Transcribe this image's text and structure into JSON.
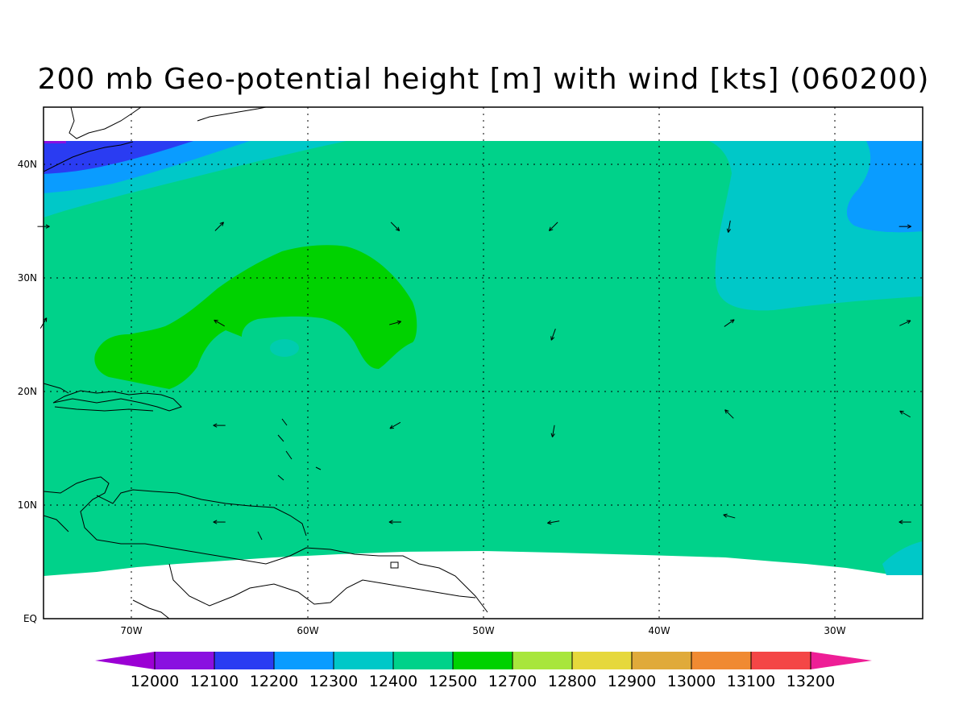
{
  "title": "200 mb Geo-potential height [m] with wind [kts] (060200)",
  "axes": {
    "x_ticks": [
      "70W",
      "60W",
      "50W",
      "40W",
      "30W"
    ],
    "y_ticks": [
      "EQ",
      "10N",
      "20N",
      "30N",
      "40N"
    ],
    "lon_range": [
      -75,
      -25
    ],
    "lat_range": [
      0,
      45
    ]
  },
  "colorbar": {
    "labels": [
      "12000",
      "12100",
      "12200",
      "12300",
      "12400",
      "12500",
      "12700",
      "12800",
      "12900",
      "13000",
      "13100",
      "13200"
    ],
    "colors": [
      "#9b00d4",
      "#8a10e0",
      "#2a3cf2",
      "#0a9cff",
      "#00c8c8",
      "#00d28a",
      "#00d200",
      "#a8e63c",
      "#e6d83c",
      "#e0aa3a",
      "#f08a32",
      "#f44646",
      "#ee1e96"
    ]
  },
  "field_colors": {
    "background": "#00d28a",
    "low_deep": "#8a10e0",
    "low_blue": "#2a3cf2",
    "low_light": "#0a9cff",
    "low_cyan": "#00c8c8",
    "high_green": "#00d200",
    "missing": "#ffffff"
  },
  "wind_vectors": [
    {
      "lon": -75,
      "lat": 34.5,
      "dir": 0
    },
    {
      "lon": -65,
      "lat": 34.5,
      "dir": 45
    },
    {
      "lon": -55,
      "lat": 34.5,
      "dir": -45
    },
    {
      "lon": -46,
      "lat": 34.5,
      "dir": -135
    },
    {
      "lon": -36,
      "lat": 34.5,
      "dir": -100
    },
    {
      "lon": -26,
      "lat": 34.5,
      "dir": 0
    },
    {
      "lon": -75,
      "lat": 26,
      "dir": 60
    },
    {
      "lon": -65,
      "lat": 26,
      "dir": 150
    },
    {
      "lon": -55,
      "lat": 26,
      "dir": 15
    },
    {
      "lon": -46,
      "lat": 25,
      "dir": -110
    },
    {
      "lon": -36,
      "lat": 26,
      "dir": 35
    },
    {
      "lon": -26,
      "lat": 26,
      "dir": 25
    },
    {
      "lon": -65,
      "lat": 17,
      "dir": 180
    },
    {
      "lon": -55,
      "lat": 17,
      "dir": -150
    },
    {
      "lon": -46,
      "lat": 16.5,
      "dir": -100
    },
    {
      "lon": -36,
      "lat": 18,
      "dir": 135
    },
    {
      "lon": -26,
      "lat": 18,
      "dir": 150
    },
    {
      "lon": -65,
      "lat": 8.5,
      "dir": 180
    },
    {
      "lon": -55,
      "lat": 8.5,
      "dir": 180
    },
    {
      "lon": -46,
      "lat": 8.5,
      "dir": -170
    },
    {
      "lon": -36,
      "lat": 9,
      "dir": 165
    },
    {
      "lon": -26,
      "lat": 8.5,
      "dir": 180
    }
  ]
}
